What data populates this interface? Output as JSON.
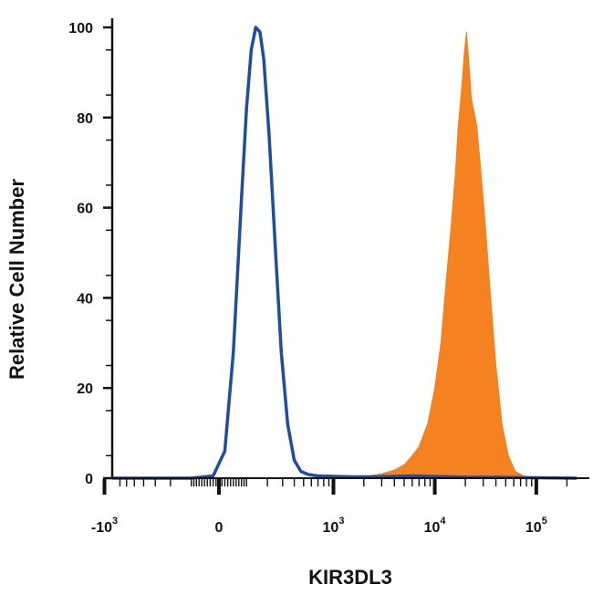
{
  "chart_data": {
    "type": "area",
    "title": "",
    "xlabel": "KIR3DL3",
    "ylabel": "Relative Cell Number",
    "x_scale": "biexponential",
    "ylim": [
      0,
      100
    ],
    "y_ticks": [
      "0",
      "20",
      "40",
      "60",
      "80",
      "100"
    ],
    "x_ticks": [
      {
        "base": "-10",
        "exp": "3",
        "value": -1000
      },
      {
        "base": "0",
        "exp": "",
        "value": 0
      },
      {
        "base": "10",
        "exp": "3",
        "value": 1000
      },
      {
        "base": "10",
        "exp": "4",
        "value": 10000
      },
      {
        "base": "10",
        "exp": "5",
        "value": 100000
      }
    ],
    "grid": false,
    "legend": "none",
    "series": [
      {
        "style": "line",
        "color": "#1f4e9c",
        "points": [
          [
            -1000,
            0
          ],
          [
            -100,
            0
          ],
          [
            -20,
            0.5
          ],
          [
            20,
            6
          ],
          [
            50,
            28
          ],
          [
            80,
            62
          ],
          [
            100,
            82
          ],
          [
            120,
            95
          ],
          [
            140,
            100
          ],
          [
            160,
            99
          ],
          [
            180,
            93
          ],
          [
            210,
            76
          ],
          [
            250,
            50
          ],
          [
            290,
            28
          ],
          [
            340,
            12
          ],
          [
            400,
            4
          ],
          [
            470,
            1.5
          ],
          [
            560,
            0.8
          ],
          [
            700,
            0.5
          ],
          [
            1000,
            0.4
          ],
          [
            1500,
            0.3
          ],
          [
            2500,
            0.3
          ],
          [
            4000,
            0.4
          ],
          [
            6000,
            0.5
          ],
          [
            9000,
            0.4
          ],
          [
            14000,
            0.3
          ],
          [
            22000,
            0.2
          ],
          [
            40000,
            0.2
          ],
          [
            100000,
            0.1
          ],
          [
            250000,
            0
          ]
        ]
      },
      {
        "style": "filled",
        "color": "#f58220",
        "points": [
          [
            -1000,
            0
          ],
          [
            0,
            0
          ],
          [
            500,
            0
          ],
          [
            1000,
            0
          ],
          [
            1500,
            0
          ],
          [
            2000,
            0.3
          ],
          [
            3000,
            1
          ],
          [
            4000,
            1.8
          ],
          [
            5000,
            3
          ],
          [
            6000,
            5
          ],
          [
            7000,
            7
          ],
          [
            8500,
            12
          ],
          [
            10000,
            20
          ],
          [
            11500,
            30
          ],
          [
            13000,
            44
          ],
          [
            14500,
            56
          ],
          [
            16000,
            68
          ],
          [
            17000,
            78
          ],
          [
            18500,
            87
          ],
          [
            19500,
            94
          ],
          [
            20500,
            99
          ],
          [
            21500,
            93
          ],
          [
            23000,
            84
          ],
          [
            24000,
            82
          ],
          [
            25000,
            80
          ],
          [
            26000,
            78
          ],
          [
            28000,
            70
          ],
          [
            31000,
            58
          ],
          [
            35000,
            42
          ],
          [
            40000,
            25
          ],
          [
            46000,
            12
          ],
          [
            53000,
            5
          ],
          [
            62000,
            1.5
          ],
          [
            75000,
            0.5
          ],
          [
            100000,
            0
          ],
          [
            250000,
            0
          ]
        ]
      }
    ]
  }
}
